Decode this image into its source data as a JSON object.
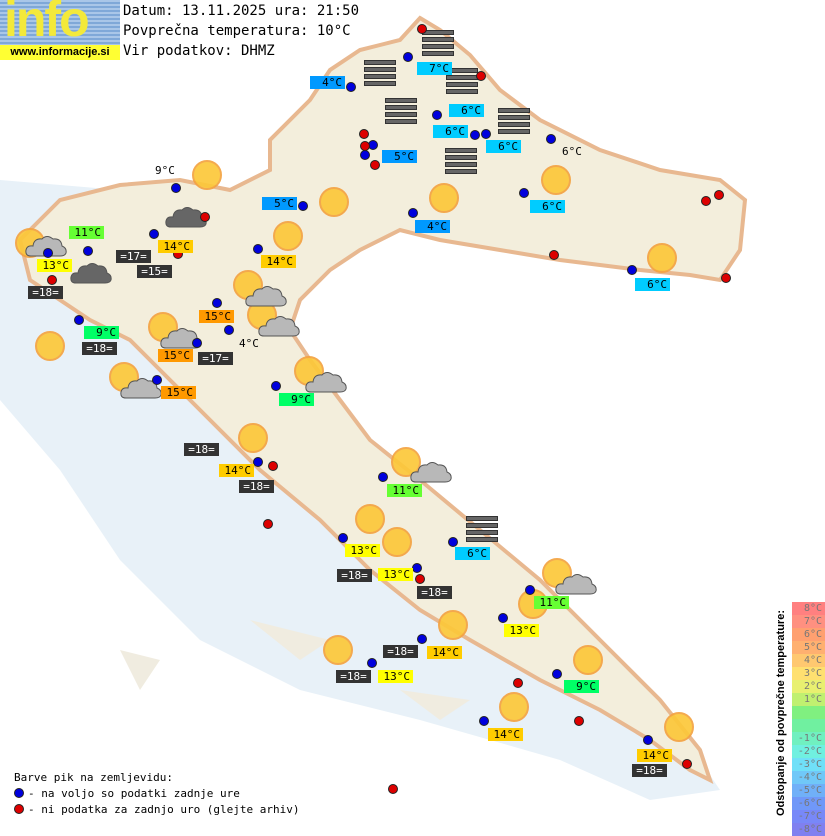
{
  "logo": {
    "word": "info",
    "url": "www.informacije.si"
  },
  "header": {
    "date_line": "Datum: 13.11.2025 ura: 21:50",
    "avg_temp_line": "Povprečna temperatura: 10°C",
    "source_line": "Vir podatkov: DHMZ"
  },
  "colors": {
    "yellow": "#ffff00",
    "amber": "#ffcc00",
    "orange": "#ff9900",
    "green": "#66ff33",
    "lime": "#00ff66",
    "cyan": "#00ccff",
    "blue": "#0099ff",
    "dark": "#333333",
    "dot_blue": "#0000dd",
    "dot_red": "#dd0000",
    "sea": "#e8f1f8",
    "land": "#f3eedc"
  },
  "labels": [
    {
      "text": "4°C",
      "style": "blue"
    },
    {
      "text": "7°C",
      "style": "cyan"
    },
    {
      "text": "6°C",
      "style": "cyan"
    },
    {
      "text": "6°C",
      "style": "cyan"
    },
    {
      "text": "6°C",
      "style": "cyan"
    },
    {
      "text": "5°C",
      "style": "blue"
    },
    {
      "text": "6°C",
      "style": "plain"
    },
    {
      "text": "9°C",
      "style": "plain"
    },
    {
      "text": "5°C",
      "style": "blue"
    },
    {
      "text": "6°C",
      "style": "cyan"
    },
    {
      "text": "4°C",
      "style": "blue"
    },
    {
      "text": "11°C",
      "style": "green"
    },
    {
      "text": "14°C",
      "style": "amber"
    },
    {
      "text": "14°C",
      "style": "amber"
    },
    {
      "text": "13°C",
      "style": "yellow"
    },
    {
      "text": "=17=",
      "style": "dark"
    },
    {
      "text": "=15=",
      "style": "dark"
    },
    {
      "text": "=18=",
      "style": "dark"
    },
    {
      "text": "6°C",
      "style": "cyan"
    },
    {
      "text": "15°C",
      "style": "orange"
    },
    {
      "text": "9°C",
      "style": "lime"
    },
    {
      "text": "=18=",
      "style": "dark"
    },
    {
      "text": "4°C",
      "style": "plain"
    },
    {
      "text": "15°C",
      "style": "orange"
    },
    {
      "text": "=17=",
      "style": "dark"
    },
    {
      "text": "15°C",
      "style": "orange"
    },
    {
      "text": "9°C",
      "style": "lime"
    },
    {
      "text": "=18=",
      "style": "dark"
    },
    {
      "text": "14°C",
      "style": "amber"
    },
    {
      "text": "=18=",
      "style": "dark"
    },
    {
      "text": "11°C",
      "style": "green"
    },
    {
      "text": "13°C",
      "style": "yellow"
    },
    {
      "text": "6°C",
      "style": "cyan"
    },
    {
      "text": "=18=",
      "style": "dark"
    },
    {
      "text": "13°C",
      "style": "yellow"
    },
    {
      "text": "=18=",
      "style": "dark"
    },
    {
      "text": "11°C",
      "style": "green"
    },
    {
      "text": "13°C",
      "style": "yellow"
    },
    {
      "text": "=18=",
      "style": "dark"
    },
    {
      "text": "14°C",
      "style": "amber"
    },
    {
      "text": "=18=",
      "style": "dark"
    },
    {
      "text": "13°C",
      "style": "yellow"
    },
    {
      "text": "9°C",
      "style": "lime"
    },
    {
      "text": "14°C",
      "style": "amber"
    },
    {
      "text": "14°C",
      "style": "amber"
    },
    {
      "text": "=18=",
      "style": "dark"
    }
  ],
  "legend": {
    "title": "Barve pik na zemljevidu:",
    "blue_text": "- na voljo so podatki zadnje ure",
    "red_text": "- ni podatka za zadnjo uro (glejte arhiv)"
  },
  "deviation_scale": {
    "title": "Odstopanje od povprečne temperature:",
    "steps": [
      {
        "label": "8°C",
        "color": "#ff8080"
      },
      {
        "label": "7°C",
        "color": "#ff9080"
      },
      {
        "label": "6°C",
        "color": "#ffa070"
      },
      {
        "label": "5°C",
        "color": "#ffb070"
      },
      {
        "label": "4°C",
        "color": "#ffc870"
      },
      {
        "label": "3°C",
        "color": "#ffe070"
      },
      {
        "label": "2°C",
        "color": "#e8f070"
      },
      {
        "label": "1°C",
        "color": "#c0f070"
      },
      {
        "label": "",
        "color": "#80f080"
      },
      {
        "label": "",
        "color": "#70f0a0"
      },
      {
        "label": "-1°C",
        "color": "#70f0c0"
      },
      {
        "label": "-2°C",
        "color": "#70f0e0"
      },
      {
        "label": "-3°C",
        "color": "#70e0f8"
      },
      {
        "label": "-4°C",
        "color": "#70c8f8"
      },
      {
        "label": "-5°C",
        "color": "#70b0f8"
      },
      {
        "label": "-6°C",
        "color": "#7098f8"
      },
      {
        "label": "-7°C",
        "color": "#7888f8"
      },
      {
        "label": "-8°C",
        "color": "#8080f0"
      }
    ]
  }
}
